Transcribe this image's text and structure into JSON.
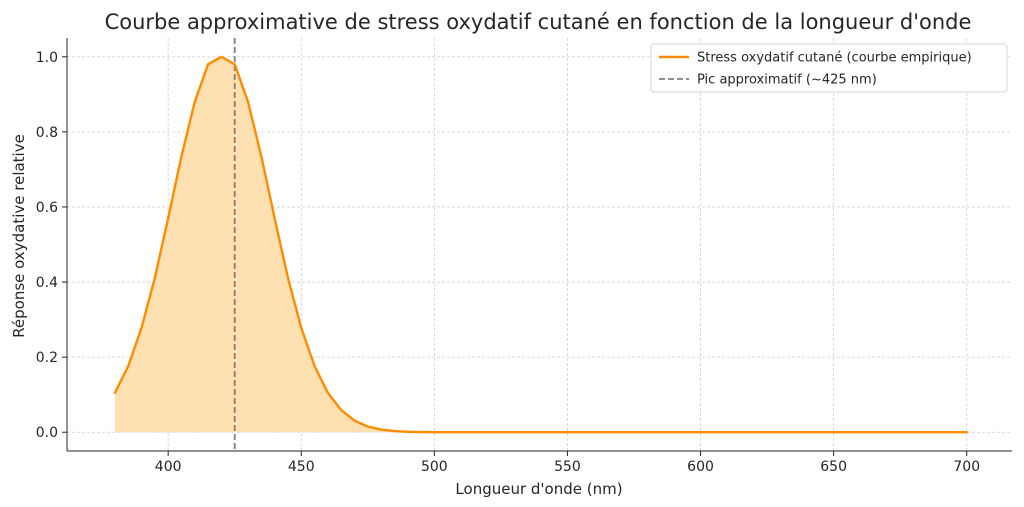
{
  "chart_data": {
    "type": "area",
    "title": "Courbe approximative de stress oxydatif cutané en fonction de la longueur d'onde",
    "xlabel": "Longueur d'onde (nm)",
    "ylabel": "Réponse oxydative relative",
    "xlim": [
      362,
      717
    ],
    "ylim": [
      -0.05,
      1.05
    ],
    "x_ticks": [
      400,
      450,
      500,
      550,
      600,
      650,
      700
    ],
    "x_tick_labels": [
      "400",
      "450",
      "500",
      "550",
      "600",
      "650",
      "700"
    ],
    "y_ticks": [
      0.0,
      0.2,
      0.4,
      0.6,
      0.8,
      1.0
    ],
    "y_tick_labels": [
      "0.0",
      "0.2",
      "0.4",
      "0.6",
      "0.8",
      "1.0"
    ],
    "grid": true,
    "legend_position": "top-right",
    "series": [
      {
        "name": "Stress oxydatif cutané (courbe empirique)",
        "color": "#ff8c00",
        "fill_color": "#ffe0b0",
        "x": [
          380,
          385,
          390,
          395,
          400,
          405,
          410,
          415,
          420,
          425,
          430,
          435,
          440,
          445,
          450,
          455,
          460,
          465,
          470,
          475,
          480,
          485,
          490,
          495,
          500,
          510,
          520,
          550,
          600,
          650,
          700
        ],
        "y": [
          0.105,
          0.176,
          0.278,
          0.411,
          0.57,
          0.735,
          0.88,
          0.98,
          1.0,
          0.98,
          0.88,
          0.735,
          0.57,
          0.411,
          0.278,
          0.176,
          0.105,
          0.059,
          0.031,
          0.015,
          0.007,
          0.003,
          0.001,
          0.0005,
          0.0002,
          0.0,
          0.0,
          0.0,
          0.0,
          0.0,
          0.0
        ]
      }
    ],
    "reference_lines": [
      {
        "name": "Pic approximatif (~425 nm)",
        "x": 425,
        "color": "#808080",
        "style": "dashed"
      }
    ]
  }
}
